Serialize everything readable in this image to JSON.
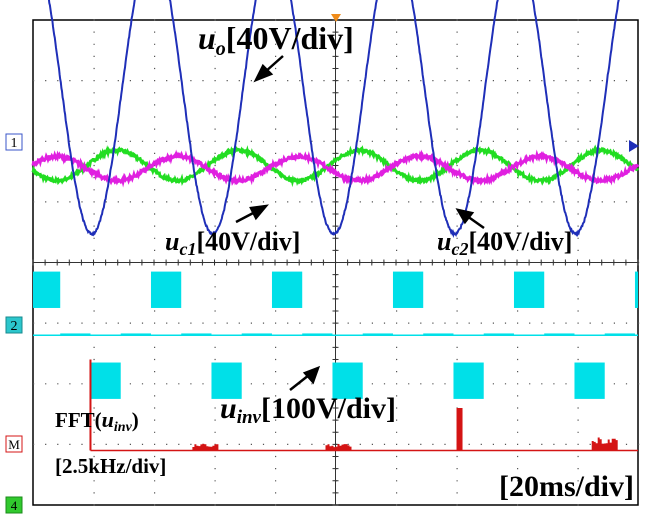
{
  "chart_data": {
    "type": "line",
    "title": "",
    "divisions": {
      "x": 10,
      "y": 8
    },
    "time_scale": "[20ms/div]",
    "channel_markers": [
      "1",
      "2",
      "M",
      "4"
    ],
    "series": [
      {
        "name": "u_o",
        "label_main": "u",
        "label_sub": "o",
        "label_scale": "[40V/div]",
        "color": "#1f2fb8",
        "amplitude_div": 2.4,
        "offset_div": 2.87,
        "cycles_on_screen": 5,
        "phase_deg": 95
      },
      {
        "name": "u_c1",
        "label_main": "u",
        "label_sub": "c1",
        "label_scale": "[40V/div]",
        "color": "#e020e0",
        "amplitude_div": 0.2,
        "offset_div": 1.55,
        "cycles_on_screen": 5,
        "phase_deg": 20
      },
      {
        "name": "u_c2",
        "label_main": "u",
        "label_sub": "c2",
        "label_scale": "[40V/div]",
        "color": "#22dd22",
        "amplitude_div": 0.25,
        "offset_div": 1.6,
        "cycles_on_screen": 5,
        "phase_deg": 200
      },
      {
        "name": "u_inv",
        "label_main": "u",
        "label_sub": "inv",
        "label_scale": "[100V/div]",
        "color": "#00e0e8",
        "levels_div": [
          0.5,
          0,
          -0.5
        ],
        "offset_div": -1.2,
        "cycles_on_screen": 5
      },
      {
        "name": "FFT(u_inv)",
        "label_prefix": "FFT(",
        "label_main": "u",
        "label_sub": "inv",
        "label_suffix": ")",
        "label_scale": "[2.5kHz/div]",
        "color": "#d41414",
        "baseline_div": -3.1,
        "peaks": [
          {
            "x_div": 0.95,
            "height_div": 1.5
          },
          {
            "x_div": 2.85,
            "height_div": 0.1
          },
          {
            "x_div": 5.05,
            "height_div": 0.1
          },
          {
            "x_div": 7.05,
            "height_div": 0.7
          },
          {
            "x_div": 9.45,
            "height_div": 0.2
          }
        ]
      }
    ]
  }
}
